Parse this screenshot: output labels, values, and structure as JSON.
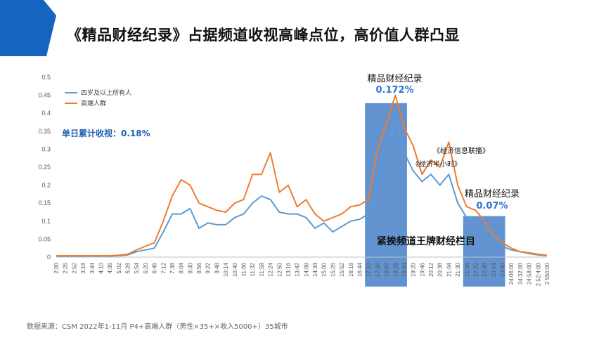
{
  "page": {
    "title": "《精品财经纪录》占据频道收视高峰点位，高价值人群凸显",
    "source": "数据来源：CSM 2022年1-11月 P4+高端人群（男性×35+×收入5000+）35城市",
    "brand_color": "#1565C0"
  },
  "chart_data": {
    "type": "line",
    "ylim": [
      0,
      0.5
    ],
    "yticks": [
      "0",
      "0.05",
      "0.1",
      "0.15",
      "0.2",
      "0.25",
      "0.3",
      "0.35",
      "0.4",
      "0.45",
      "0.5"
    ],
    "x_tick_labels": [
      "2:00",
      "2:26",
      "2:52",
      "3:18",
      "3:44",
      "4:10",
      "4:36",
      "5:02",
      "5:28",
      "5:54",
      "6:20",
      "6:46",
      "7:12",
      "7:38",
      "8:04",
      "8:30",
      "8:56",
      "9:22",
      "9:48",
      "10:14",
      "10:40",
      "11:06",
      "11:32",
      "11:58",
      "12:24",
      "12:50",
      "13:16",
      "13:42",
      "14:08",
      "14:34",
      "15:00",
      "15:26",
      "15:52",
      "16:18",
      "16:44",
      "17:10",
      "17:36",
      "18:02",
      "18:28",
      "18:54",
      "19:20",
      "19:46",
      "20:12",
      "20:38",
      "21:04",
      "21:30",
      "21:56",
      "22:22",
      "22:48",
      "23:14",
      "23:40",
      "24:06:00",
      "24:32:00",
      "24:58:00",
      "2 52:4:00",
      "2 550:00"
    ],
    "legend": {
      "position": "top-left"
    },
    "series": [
      {
        "name": "四岁及以上所有人",
        "color": "#5B9BD5",
        "values": [
          0.003,
          0.003,
          0.003,
          0.003,
          0.003,
          0.003,
          0.003,
          0.004,
          0.006,
          0.015,
          0.02,
          0.025,
          0.07,
          0.12,
          0.12,
          0.135,
          0.08,
          0.095,
          0.09,
          0.09,
          0.11,
          0.12,
          0.15,
          0.17,
          0.16,
          0.125,
          0.12,
          0.12,
          0.11,
          0.08,
          0.095,
          0.07,
          0.085,
          0.1,
          0.105,
          0.12,
          0.21,
          0.28,
          0.38,
          0.29,
          0.24,
          0.21,
          0.23,
          0.2,
          0.23,
          0.15,
          0.11,
          0.1,
          0.08,
          0.05,
          0.03,
          0.02,
          0.015,
          0.01,
          0.006,
          0.004
        ]
      },
      {
        "name": "高端人群",
        "color": "#ED7D31",
        "values": [
          0.004,
          0.004,
          0.004,
          0.004,
          0.004,
          0.004,
          0.004,
          0.005,
          0.008,
          0.02,
          0.03,
          0.04,
          0.1,
          0.17,
          0.215,
          0.2,
          0.15,
          0.14,
          0.13,
          0.125,
          0.15,
          0.16,
          0.23,
          0.23,
          0.29,
          0.18,
          0.2,
          0.14,
          0.16,
          0.12,
          0.1,
          0.11,
          0.12,
          0.14,
          0.145,
          0.16,
          0.3,
          0.37,
          0.45,
          0.36,
          0.31,
          0.23,
          0.27,
          0.25,
          0.32,
          0.2,
          0.14,
          0.13,
          0.1,
          0.06,
          0.04,
          0.025,
          0.015,
          0.012,
          0.008,
          0.005
        ]
      }
    ],
    "highlights": [
      {
        "x_from": "17:10",
        "x_to": "18:54",
        "label": "精品财经纪录",
        "value": "0.172%"
      },
      {
        "x_from": "21:56",
        "x_to": "23:40",
        "label": "精品财经纪录",
        "value": "0.07%"
      }
    ],
    "annotations": {
      "daily": "单日累计收视：0.18%",
      "prog_half_hour": "《经济半小时》",
      "prog_info": "《经济信息联播》",
      "bottom": "紧挨频道王牌财经栏目"
    }
  }
}
